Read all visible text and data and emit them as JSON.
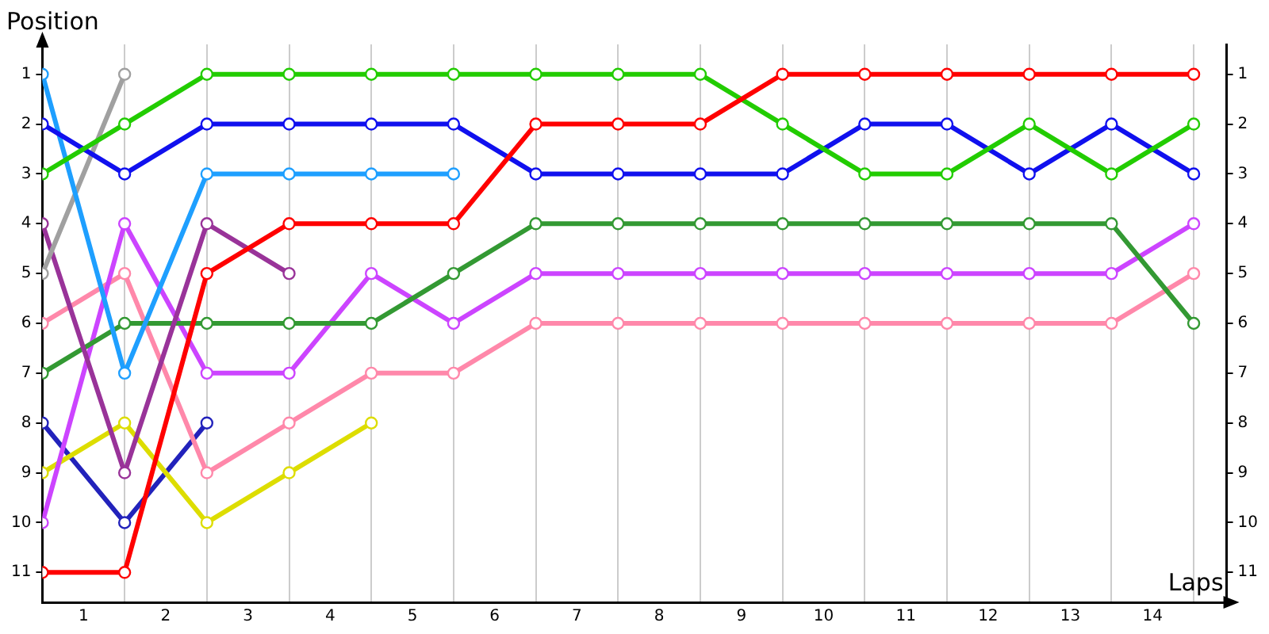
{
  "chart_data": {
    "type": "line",
    "xlabel": "Laps",
    "ylabel": "Position",
    "marker": "circle",
    "grid": "x",
    "legend": false,
    "x": [
      0,
      1,
      2,
      3,
      4,
      5,
      6,
      7,
      8,
      9,
      10,
      11,
      12,
      13,
      14
    ],
    "xlim": [
      0,
      14.4
    ],
    "xticks": [
      {
        "value": 0,
        "label": null
      },
      {
        "value": 0.5,
        "label": "1"
      },
      {
        "value": 1,
        "label": null
      },
      {
        "value": 1.5,
        "label": "2"
      },
      {
        "value": 2,
        "label": null
      },
      {
        "value": 2.5,
        "label": "3"
      },
      {
        "value": 3,
        "label": null
      },
      {
        "value": 3.5,
        "label": "4"
      },
      {
        "value": 4,
        "label": null
      },
      {
        "value": 4.5,
        "label": "5"
      },
      {
        "value": 5,
        "label": null
      },
      {
        "value": 5.5,
        "label": "6"
      },
      {
        "value": 6,
        "label": null
      },
      {
        "value": 6.5,
        "label": "7"
      },
      {
        "value": 7,
        "label": null
      },
      {
        "value": 7.5,
        "label": "8"
      },
      {
        "value": 8,
        "label": null
      },
      {
        "value": 8.5,
        "label": "9"
      },
      {
        "value": 9,
        "label": null
      },
      {
        "value": 9.5,
        "label": "10"
      },
      {
        "value": 10,
        "label": null
      },
      {
        "value": 10.5,
        "label": "11"
      },
      {
        "value": 11,
        "label": null
      },
      {
        "value": 11.5,
        "label": "12"
      },
      {
        "value": 12,
        "label": null
      },
      {
        "value": 12.5,
        "label": "13"
      },
      {
        "value": 13,
        "label": null
      },
      {
        "value": 13.5,
        "label": "14"
      },
      {
        "value": 14,
        "label": null
      }
    ],
    "ylim": [
      11.6,
      0.4
    ],
    "yticks": [
      1,
      2,
      3,
      4,
      5,
      6,
      7,
      8,
      9,
      10,
      11
    ],
    "y2lim": [
      11.6,
      0.4
    ],
    "y2ticks": [
      1,
      2,
      3,
      4,
      5,
      6,
      7,
      8,
      9,
      10,
      11
    ],
    "series": [
      {
        "color": "#ff0000",
        "values": [
          11,
          11,
          5,
          4,
          4,
          4,
          2,
          2,
          2,
          1,
          1,
          1,
          1,
          1,
          1
        ]
      },
      {
        "color": "#22cc00",
        "values": [
          3,
          2,
          1,
          1,
          1,
          1,
          1,
          1,
          1,
          2,
          3,
          3,
          2,
          3,
          2
        ]
      },
      {
        "color": "#1010ee",
        "values": [
          2,
          3,
          2,
          2,
          2,
          2,
          3,
          3,
          3,
          3,
          2,
          2,
          3,
          2,
          3
        ]
      },
      {
        "color": "#1e9fff",
        "values": [
          1,
          7,
          3,
          3,
          3,
          3,
          null,
          null,
          null,
          null,
          null,
          null,
          null,
          null,
          null
        ]
      },
      {
        "color": "#a0a0a0",
        "values": [
          5,
          1,
          null,
          null,
          null,
          null,
          null,
          null,
          null,
          null,
          null,
          null,
          null,
          null,
          null
        ]
      },
      {
        "color": "#993399",
        "values": [
          4,
          9,
          4,
          5,
          null,
          null,
          null,
          null,
          null,
          null,
          null,
          null,
          null,
          null,
          null
        ]
      },
      {
        "color": "#339933",
        "values": [
          7,
          6,
          6,
          6,
          6,
          5,
          4,
          4,
          4,
          4,
          4,
          4,
          4,
          4,
          6
        ]
      },
      {
        "color": "#cc44ff",
        "values": [
          10,
          4,
          7,
          7,
          5,
          6,
          5,
          5,
          5,
          5,
          5,
          5,
          5,
          5,
          4
        ]
      },
      {
        "color": "#ff88aa",
        "values": [
          6,
          5,
          9,
          8,
          7,
          7,
          6,
          6,
          6,
          6,
          6,
          6,
          6,
          6,
          5
        ]
      },
      {
        "color": "#dddd00",
        "values": [
          9,
          8,
          10,
          9,
          8,
          null,
          null,
          null,
          null,
          null,
          null,
          null,
          null,
          null,
          null
        ]
      },
      {
        "color": "#2222bb",
        "values": [
          8,
          10,
          8,
          null,
          null,
          null,
          null,
          null,
          null,
          null,
          null,
          null,
          null,
          null,
          null
        ]
      }
    ]
  }
}
